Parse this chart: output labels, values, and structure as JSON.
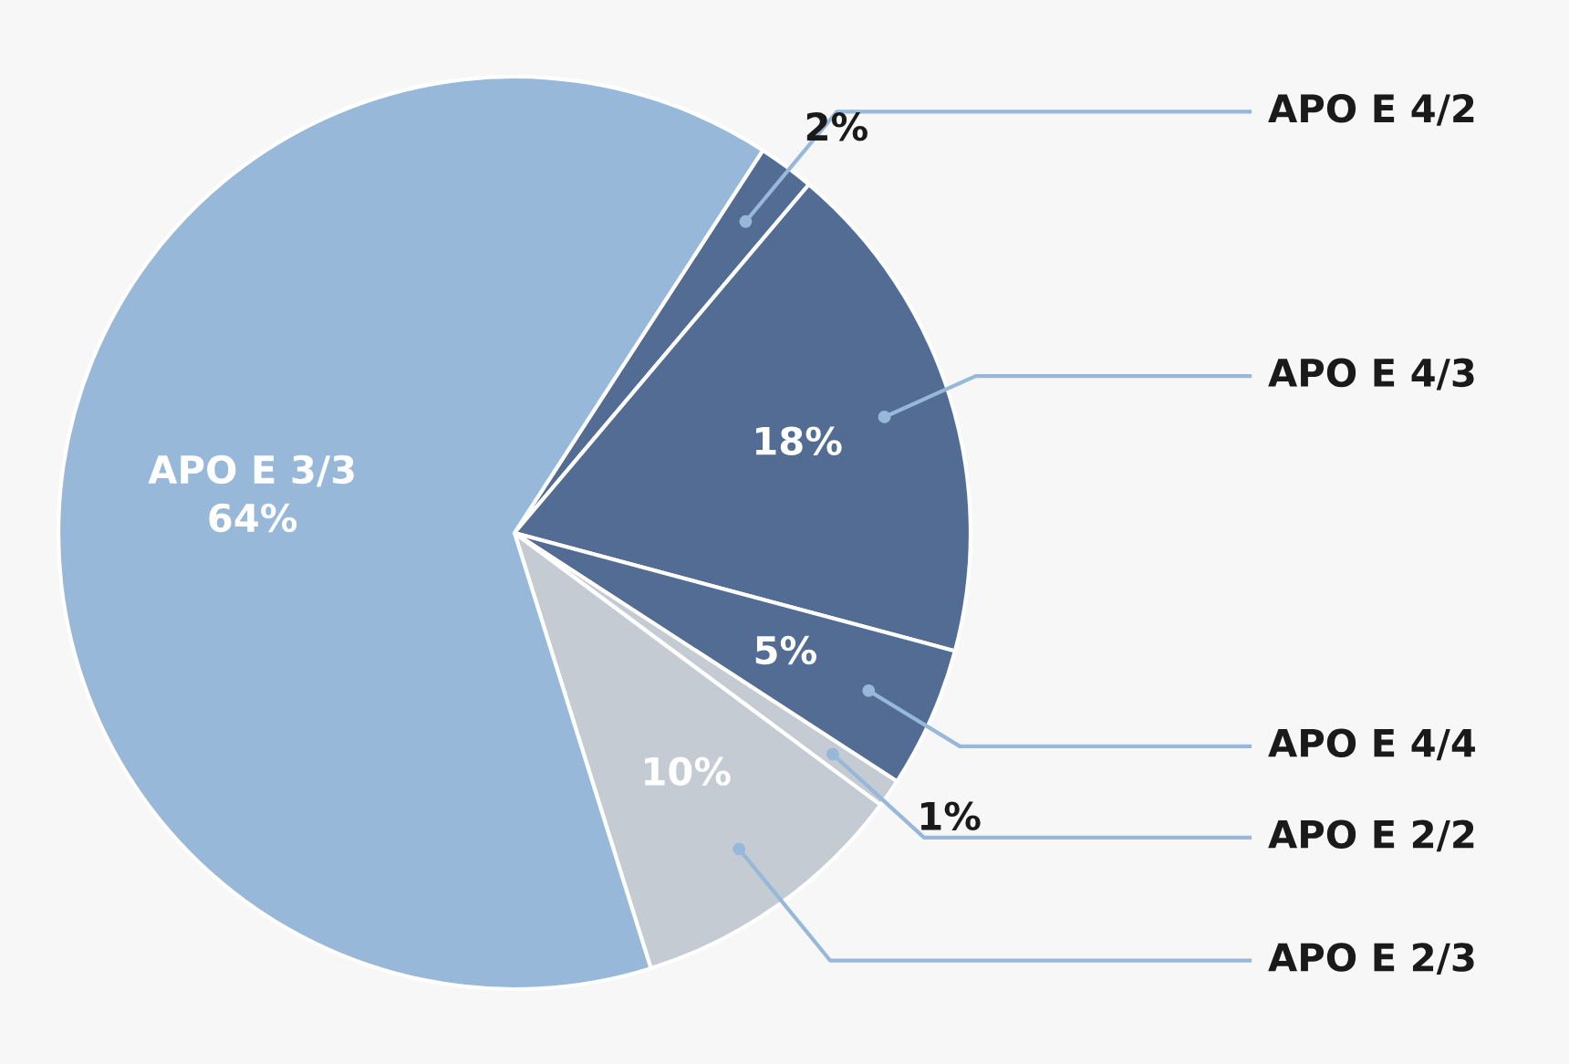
{
  "chart_data": {
    "type": "pie",
    "categories": [
      "APO E 4/2",
      "APO E 4/3",
      "APO E 4/4",
      "APO E 2/2",
      "APO E 2/3",
      "APO E 3/3"
    ],
    "values": [
      2,
      18,
      5,
      1,
      10,
      64
    ],
    "colors": [
      "#536c94",
      "#536c94",
      "#536c94",
      "#c5cbd3",
      "#c5cbd3",
      "#97b8d8"
    ],
    "value_labels": [
      "2%",
      "18%",
      "5%",
      "1%",
      "10%",
      "64%"
    ]
  }
}
